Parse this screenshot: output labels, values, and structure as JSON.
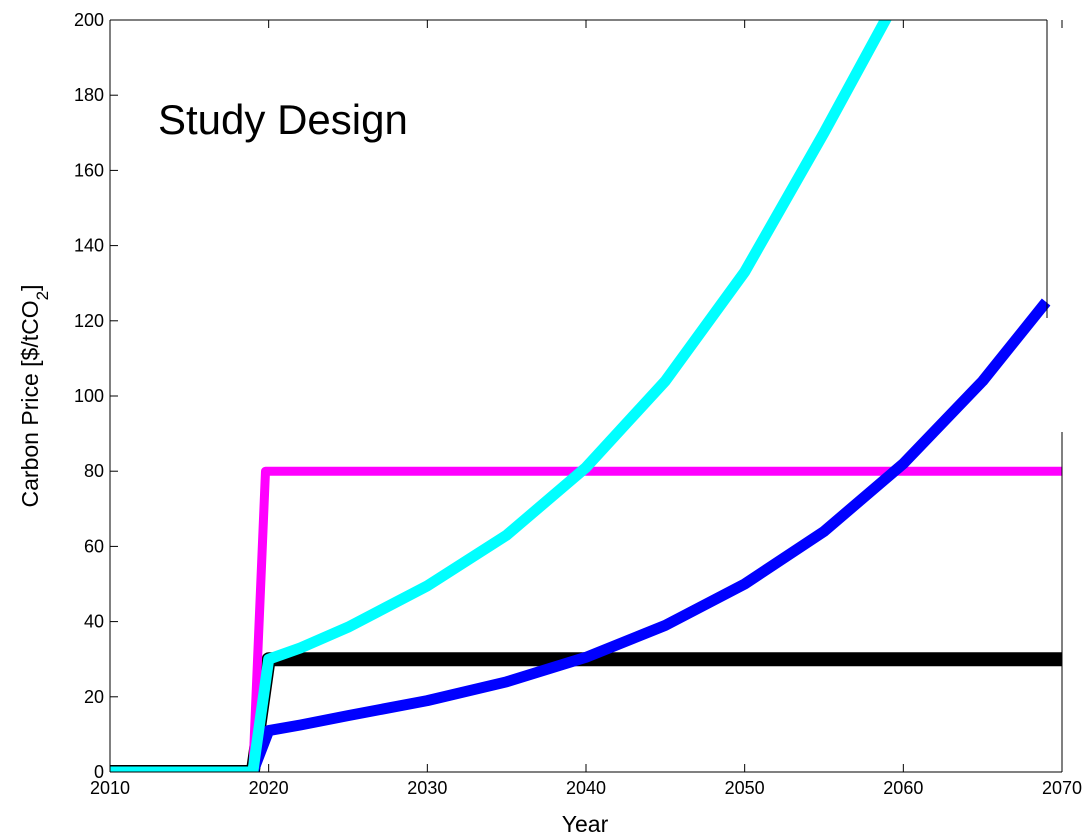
{
  "chart_data": {
    "type": "line",
    "title": "",
    "annotation": "Study Design",
    "xlabel": "Year",
    "ylabel_main": "Carbon Price [$/tCO",
    "ylabel_sub": "2",
    "ylabel_end": "]",
    "xlim": [
      2010,
      2070
    ],
    "ylim": [
      0,
      200
    ],
    "xticks": [
      2010,
      2020,
      2030,
      2040,
      2050,
      2060,
      2070
    ],
    "yticks": [
      0,
      20,
      40,
      60,
      80,
      100,
      120,
      140,
      160,
      180,
      200
    ],
    "grid": false,
    "legend": "none",
    "series": [
      {
        "color": "#000000",
        "x": [
          2010,
          2019,
          2020,
          2030,
          2040,
          2050,
          2060,
          2070
        ],
        "y": [
          0,
          0,
          30,
          30,
          30,
          30,
          30,
          30
        ]
      },
      {
        "color": "#ff00ff",
        "x": [
          2010,
          2019,
          2019.8,
          2020,
          2030,
          2040,
          2050,
          2060,
          2070
        ],
        "y": [
          0,
          0,
          80,
          80,
          80,
          80,
          80,
          80,
          80
        ]
      },
      {
        "color": "#0000ff",
        "x": [
          2010,
          2019,
          2020,
          2022,
          2025,
          2030,
          2035,
          2040,
          2045,
          2050,
          2055,
          2060,
          2065,
          2069
        ],
        "y": [
          0,
          0,
          11,
          12.5,
          15,
          19,
          24,
          30.5,
          39,
          50,
          64,
          82,
          104,
          125
        ]
      },
      {
        "color": "#00ffff",
        "x": [
          2010,
          2019,
          2020,
          2022,
          2025,
          2030,
          2035,
          2040,
          2045,
          2050,
          2055,
          2059
        ],
        "y": [
          0,
          0,
          30,
          33,
          38.5,
          49.5,
          63,
          81,
          104,
          133,
          170,
          201
        ]
      }
    ]
  }
}
